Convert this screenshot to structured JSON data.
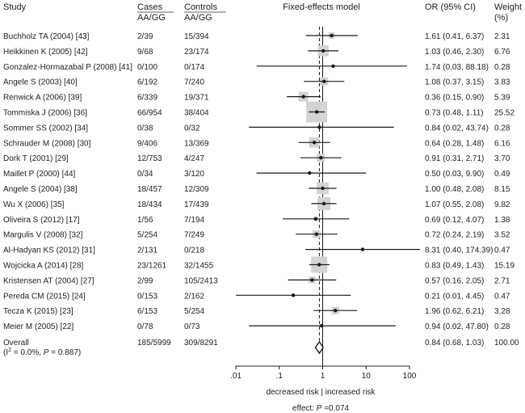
{
  "chart_data": {
    "type": "forest",
    "title": "Fixed-effects model",
    "headers": {
      "study": "Study",
      "cases": "Cases",
      "cases_sub": "AA/GG",
      "controls": "Controls",
      "controls_sub": "AA/GG",
      "model": "Fixed-effects model",
      "or": "OR (95% CI)",
      "weight": "Weight",
      "weight_unit": "(%)"
    },
    "studies": [
      {
        "study": "Buchholz TA (2004) [43]",
        "cases": "2/39",
        "controls": "15/394",
        "or": 1.61,
        "lo": 0.41,
        "hi": 6.37,
        "ci_text": "1.61 (0.41, 6.37)",
        "weight": 2.31,
        "weight_text": "2.31"
      },
      {
        "study": "Heikkinen K (2005) [42]",
        "cases": "9/68",
        "controls": "23/174",
        "or": 1.03,
        "lo": 0.46,
        "hi": 2.3,
        "ci_text": "1.03 (0.46, 2.30)",
        "weight": 6.76,
        "weight_text": "6.76"
      },
      {
        "study": "Gonzalez-Hormazabal P (2008) [41]",
        "cases": "0/100",
        "controls": "0/174",
        "or": 1.74,
        "lo": 0.03,
        "hi": 88.18,
        "ci_text": "1.74 (0.03, 88.18)",
        "weight": 0.28,
        "weight_text": "0.28"
      },
      {
        "study": "Angele S (2003) [40]",
        "cases": "6/192",
        "controls": "7/240",
        "or": 1.08,
        "lo": 0.37,
        "hi": 3.15,
        "ci_text": "1.08 (0.37, 3.15)",
        "weight": 3.83,
        "weight_text": "3.83"
      },
      {
        "study": "Renwick A (2006) [39]",
        "cases": "6/339",
        "controls": "19/371",
        "or": 0.36,
        "lo": 0.15,
        "hi": 0.9,
        "ci_text": "0.36 (0.15, 0.90)",
        "weight": 5.39,
        "weight_text": "5.39"
      },
      {
        "study": "Tommiska J (2006) [36]",
        "cases": "66/954",
        "controls": "38/404",
        "or": 0.73,
        "lo": 0.48,
        "hi": 1.11,
        "ci_text": "0.73 (0.48, 1.11)",
        "weight": 25.52,
        "weight_text": "25.52"
      },
      {
        "study": "Sommer SS (2002) [34]",
        "cases": "0/38",
        "controls": "0/32",
        "or": 0.84,
        "lo": 0.02,
        "hi": 43.74,
        "ci_text": "0.84 (0.02, 43.74)",
        "weight": 0.28,
        "weight_text": "0.28"
      },
      {
        "study": "Schrauder M (2008) [30]",
        "cases": "9/406",
        "controls": "13/369",
        "or": 0.64,
        "lo": 0.28,
        "hi": 1.48,
        "ci_text": "0.64 (0.28, 1.48)",
        "weight": 6.16,
        "weight_text": "6.16"
      },
      {
        "study": "Dork T (2001) [29]",
        "cases": "12/753",
        "controls": "4/247",
        "or": 0.91,
        "lo": 0.31,
        "hi": 2.71,
        "ci_text": "0.91 (0.31, 2.71)",
        "weight": 3.7,
        "weight_text": "3.70"
      },
      {
        "study": "Maillet P (2000) [44]",
        "cases": "0/34",
        "controls": "3/120",
        "or": 0.5,
        "lo": 0.03,
        "hi": 9.9,
        "ci_text": "0.50 (0.03, 9.90)",
        "weight": 0.49,
        "weight_text": "0.49"
      },
      {
        "study": "Angele S (2004) [38]",
        "cases": "18/457",
        "controls": "12/309",
        "or": 1.0,
        "lo": 0.48,
        "hi": 2.08,
        "ci_text": "1.00 (0.48, 2.08)",
        "weight": 8.15,
        "weight_text": "8.15"
      },
      {
        "study": "Wu X (2006) [35]",
        "cases": "18/434",
        "controls": "17/439",
        "or": 1.07,
        "lo": 0.55,
        "hi": 2.08,
        "ci_text": "1.07 (0.55, 2.08)",
        "weight": 9.82,
        "weight_text": "9.82"
      },
      {
        "study": "Oliveira S (2012) [17]",
        "cases": "1/56",
        "controls": "7/194",
        "or": 0.69,
        "lo": 0.12,
        "hi": 4.07,
        "ci_text": "0.69 (0.12, 4.07)",
        "weight": 1.38,
        "weight_text": "1.38"
      },
      {
        "study": "Margulis V (2008) [32]",
        "cases": "5/254",
        "controls": "7/249",
        "or": 0.72,
        "lo": 0.24,
        "hi": 2.19,
        "ci_text": "0.72 (0.24, 2.19)",
        "weight": 3.52,
        "weight_text": "3.52"
      },
      {
        "study": "Al-Hadyan KS (2012) [31]",
        "cases": "2/131",
        "controls": "0/218",
        "or": 8.31,
        "lo": 0.4,
        "hi": 174.39,
        "ci_text": "8.31 (0.40, 174.39)",
        "weight": 0.47,
        "weight_text": "0.47"
      },
      {
        "study": "Wojcicka A (2014) [28]",
        "cases": "23/1261",
        "controls": "32/1455",
        "or": 0.83,
        "lo": 0.49,
        "hi": 1.43,
        "ci_text": "0.83 (0.49, 1.43)",
        "weight": 15.19,
        "weight_text": "15.19"
      },
      {
        "study": "Kristensen AT (2004) [27]",
        "cases": "2/99",
        "controls": "105/2413",
        "or": 0.57,
        "lo": 0.16,
        "hi": 2.05,
        "ci_text": "0.57 (0.16, 2.05)",
        "weight": 2.71,
        "weight_text": "2.71"
      },
      {
        "study": "Pereda CM (2015) [24]",
        "cases": "0/153",
        "controls": "2/162",
        "or": 0.21,
        "lo": 0.01,
        "hi": 4.45,
        "ci_text": "0.21 (0.01, 4.45)",
        "weight": 0.47,
        "weight_text": "0.47"
      },
      {
        "study": "Tecza K (2015) [23]",
        "cases": "6/153",
        "controls": "5/254",
        "or": 1.96,
        "lo": 0.62,
        "hi": 6.21,
        "ci_text": "1.96 (0.62, 6.21)",
        "weight": 3.28,
        "weight_text": "3.28"
      },
      {
        "study": "Meier M (2005) [22]",
        "cases": "0/78",
        "controls": "0/73",
        "or": 0.94,
        "lo": 0.02,
        "hi": 47.8,
        "ci_text": "0.94 (0.02, 47.80)",
        "weight": 0.28,
        "weight_text": "0.28"
      }
    ],
    "overall": {
      "label": "Overall",
      "cases": "185/5999",
      "controls": "309/8291",
      "or": 0.84,
      "lo": 0.68,
      "hi": 1.03,
      "ci_text": "0.84 (0.68, 1.03)",
      "weight_text": "100.00"
    },
    "heterogeneity": {
      "i2_value": "0.0%",
      "p_value": "0.887"
    },
    "x_axis": {
      "scale": "log",
      "range": [
        0.01,
        100
      ],
      "ticks": [
        0.01,
        0.1,
        1,
        10,
        100
      ],
      "tick_labels": [
        ".01",
        ".1",
        "1",
        "10",
        "100"
      ],
      "null_line": 1,
      "label": "decreased risk | increased risk"
    },
    "effect": {
      "prefix": "effect: ",
      "p_label": "P",
      "p_value": "0.074"
    },
    "colors": {
      "box": "#d3d3d3",
      "line": "#1a1a1a",
      "text": "#222222"
    }
  }
}
